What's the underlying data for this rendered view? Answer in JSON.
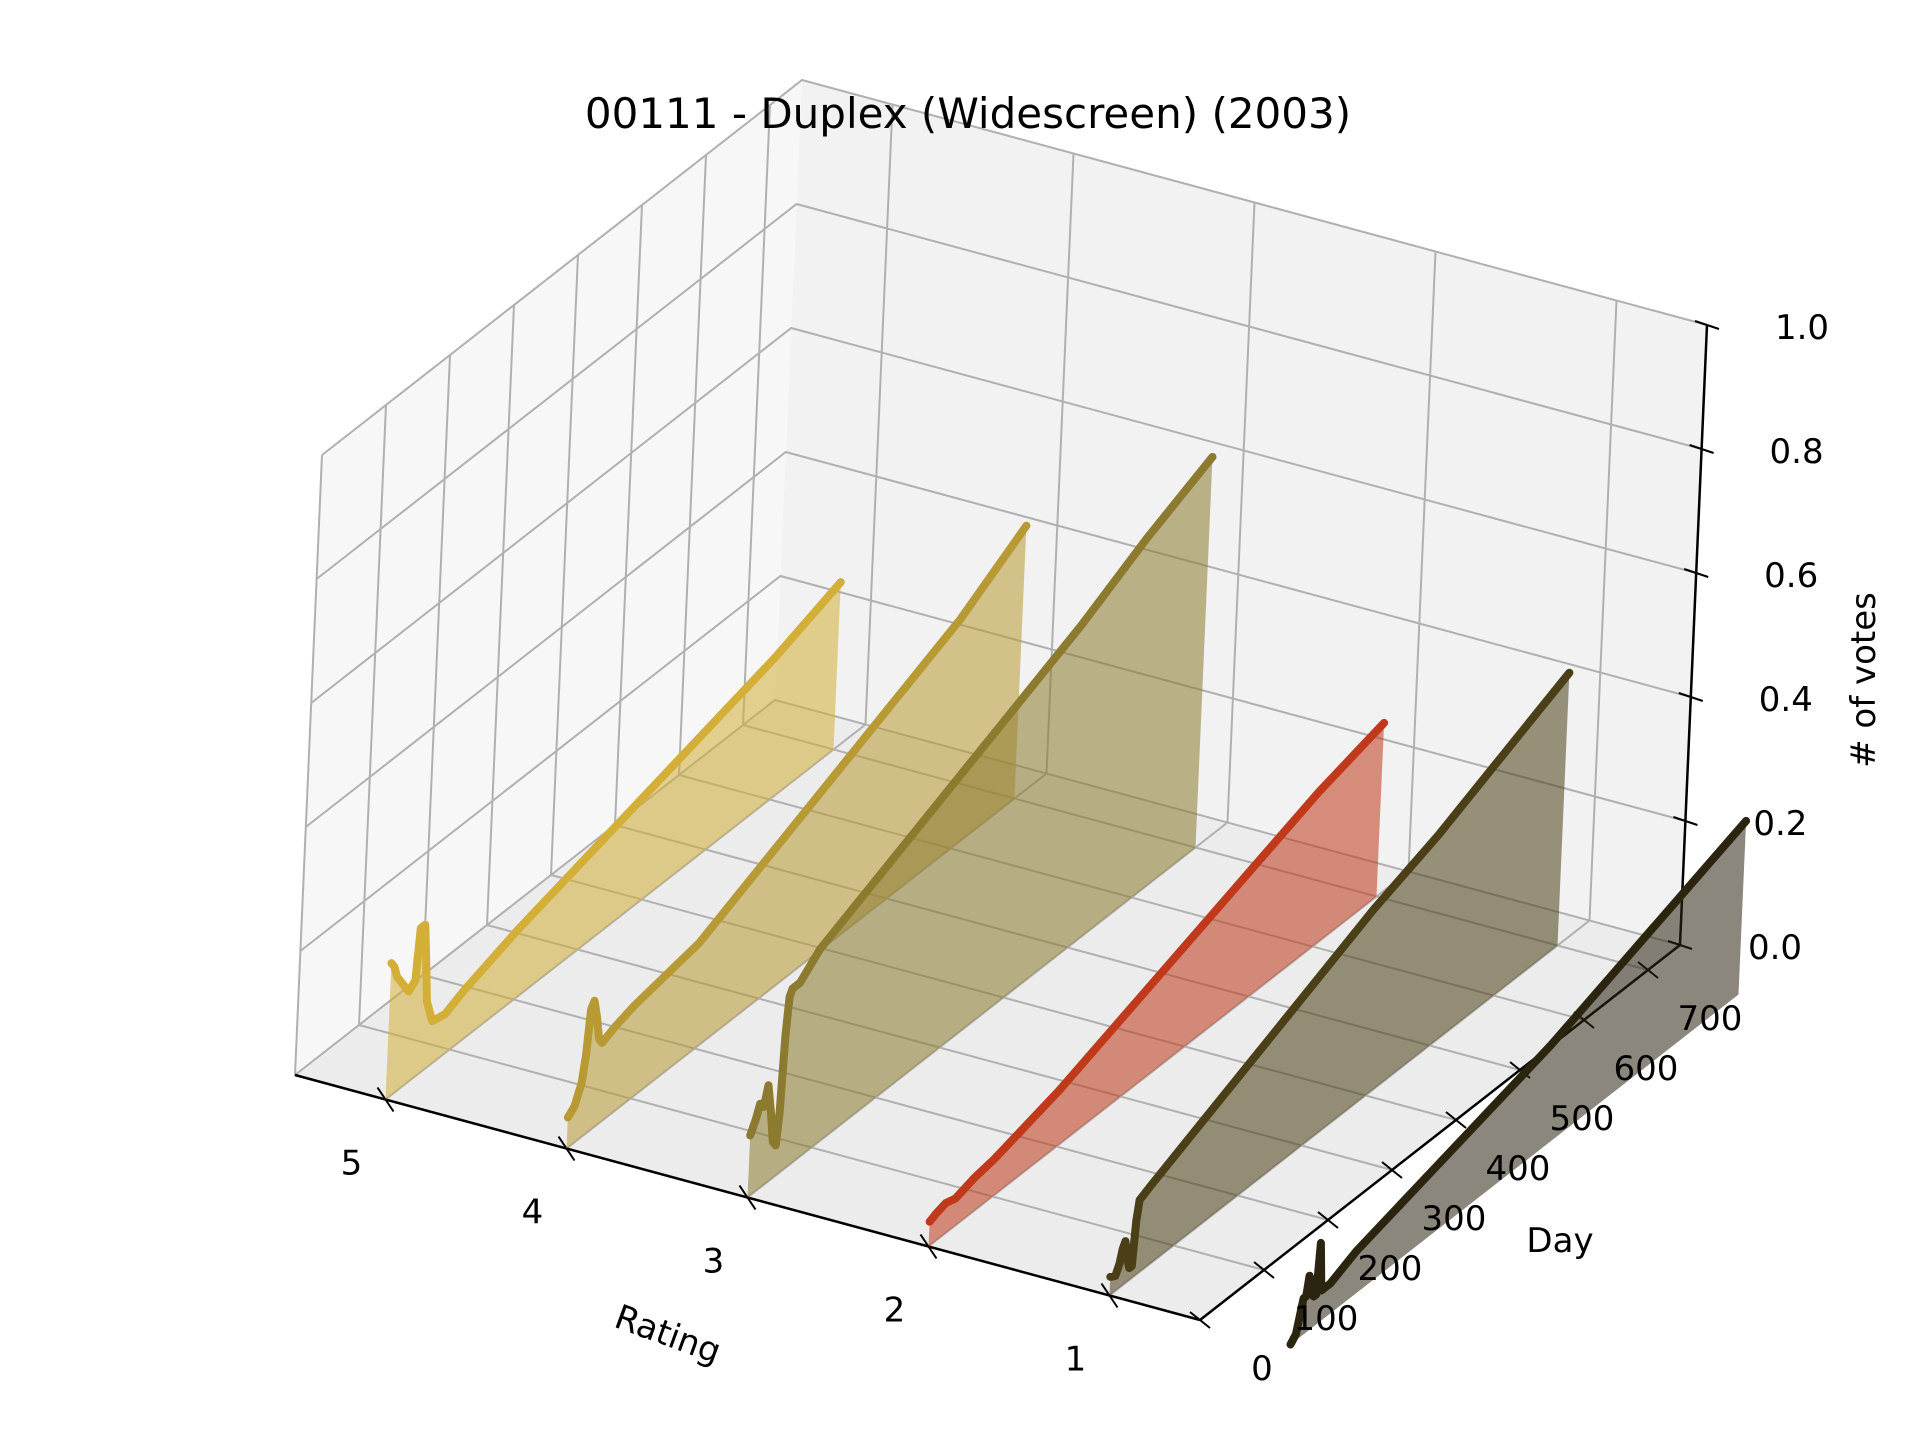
{
  "chart_data": {
    "type": "line",
    "projection": "3d",
    "title": "00111 - Duplex (Widescreen) (2003)",
    "xlabel": "Rating",
    "ylabel": "Day",
    "zlabel": "# of votes",
    "xlim": [
      0.5,
      5.5
    ],
    "ylim": [
      0,
      750
    ],
    "zlim": [
      0,
      1
    ],
    "x_ticks": [
      "5",
      "4",
      "3",
      "2",
      "1"
    ],
    "y_ticks": [
      "0",
      "100",
      "200",
      "300",
      "400",
      "500",
      "600",
      "700"
    ],
    "z_ticks": [
      "0.0",
      "0.2",
      "0.4",
      "0.6",
      "0.8",
      "1.0"
    ],
    "grid": true,
    "fill_under_lines": true,
    "series": [
      {
        "rating": 5,
        "color": "#d4af37",
        "points": [
          [
            0,
            0.22
          ],
          [
            5,
            0.21
          ],
          [
            10,
            0.19
          ],
          [
            20,
            0.17
          ],
          [
            30,
            0.15
          ],
          [
            40,
            0.16
          ],
          [
            45,
            0.24
          ],
          [
            52,
            0.24
          ],
          [
            56,
            0.18
          ],
          [
            60,
            0.11
          ],
          [
            70,
            0.07
          ],
          [
            90,
            0.065
          ],
          [
            120,
            0.08
          ],
          [
            200,
            0.11
          ],
          [
            300,
            0.14
          ],
          [
            400,
            0.17
          ],
          [
            500,
            0.2
          ],
          [
            600,
            0.23
          ],
          [
            700,
            0.27
          ]
        ]
      },
      {
        "rating": 4,
        "color": "#b89a34",
        "points": [
          [
            0,
            0.05
          ],
          [
            10,
            0.06
          ],
          [
            20,
            0.09
          ],
          [
            25,
            0.13
          ],
          [
            30,
            0.2
          ],
          [
            35,
            0.21
          ],
          [
            40,
            0.18
          ],
          [
            45,
            0.14
          ],
          [
            50,
            0.13
          ],
          [
            70,
            0.14
          ],
          [
            100,
            0.15
          ],
          [
            150,
            0.16
          ],
          [
            200,
            0.17
          ],
          [
            300,
            0.22
          ],
          [
            400,
            0.27
          ],
          [
            500,
            0.32
          ],
          [
            600,
            0.37
          ],
          [
            700,
            0.44
          ]
        ]
      },
      {
        "rating": 3,
        "color": "#8c7a2e",
        "points": [
          [
            0,
            0.1
          ],
          [
            8,
            0.12
          ],
          [
            14,
            0.14
          ],
          [
            20,
            0.13
          ],
          [
            26,
            0.16
          ],
          [
            32,
            0.11
          ],
          [
            37,
            0.06
          ],
          [
            42,
            0.05
          ],
          [
            46,
            0.1
          ],
          [
            50,
            0.22
          ],
          [
            54,
            0.28
          ],
          [
            58,
            0.29
          ],
          [
            70,
            0.29
          ],
          [
            100,
            0.32
          ],
          [
            200,
            0.37
          ],
          [
            300,
            0.42
          ],
          [
            400,
            0.47
          ],
          [
            500,
            0.52
          ],
          [
            600,
            0.58
          ],
          [
            700,
            0.63
          ]
        ]
      },
      {
        "rating": 2,
        "color": "#c0391a",
        "points": [
          [
            0,
            0.04
          ],
          [
            10,
            0.045
          ],
          [
            25,
            0.05
          ],
          [
            40,
            0.045
          ],
          [
            55,
            0.05
          ],
          [
            70,
            0.055
          ],
          [
            100,
            0.06
          ],
          [
            200,
            0.09
          ],
          [
            300,
            0.13
          ],
          [
            400,
            0.17
          ],
          [
            500,
            0.21
          ],
          [
            600,
            0.25
          ],
          [
            700,
            0.28
          ]
        ]
      },
      {
        "rating": 1,
        "color": "#4a3f16",
        "points": [
          [
            0,
            0.03
          ],
          [
            8,
            0.025
          ],
          [
            14,
            0.04
          ],
          [
            18,
            0.06
          ],
          [
            22,
            0.07
          ],
          [
            26,
            0.04
          ],
          [
            30,
            0.02
          ],
          [
            34,
            0.02
          ],
          [
            38,
            0.09
          ],
          [
            42,
            0.12
          ],
          [
            60,
            0.13
          ],
          [
            100,
            0.15
          ],
          [
            200,
            0.2
          ],
          [
            300,
            0.25
          ],
          [
            400,
            0.3
          ],
          [
            500,
            0.34
          ],
          [
            600,
            0.39
          ],
          [
            700,
            0.44
          ]
        ]
      },
      {
        "rating": 0,
        "color": "#2b2510",
        "points": [
          [
            0,
            0.0
          ],
          [
            8,
            0.01
          ],
          [
            14,
            0.04
          ],
          [
            18,
            0.06
          ],
          [
            22,
            0.06
          ],
          [
            26,
            0.09
          ],
          [
            30,
            0.07
          ],
          [
            34,
            0.05
          ],
          [
            38,
            0.05
          ],
          [
            42,
            0.13
          ],
          [
            46,
            0.05
          ],
          [
            60,
            0.05
          ],
          [
            100,
            0.07
          ],
          [
            200,
            0.1
          ],
          [
            300,
            0.13
          ],
          [
            400,
            0.16
          ],
          [
            500,
            0.2
          ],
          [
            600,
            0.24
          ],
          [
            700,
            0.28
          ]
        ]
      }
    ]
  }
}
